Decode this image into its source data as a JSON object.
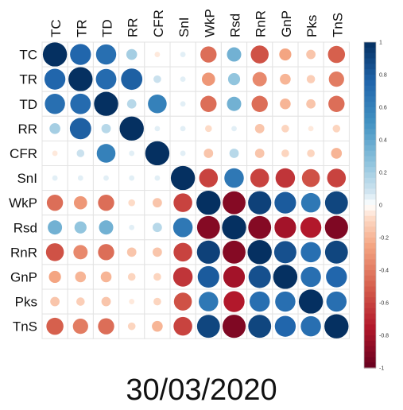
{
  "chart_data": {
    "type": "heatmap",
    "variables": [
      "TC",
      "TR",
      "TD",
      "RR",
      "CFR",
      "SnI",
      "WkP",
      "Rsd",
      "RnR",
      "GnP",
      "Pks",
      "TnS"
    ],
    "matrix": [
      [
        1.0,
        0.75,
        0.7,
        0.2,
        -0.05,
        0.05,
        -0.45,
        0.35,
        -0.55,
        -0.25,
        -0.15,
        -0.5
      ],
      [
        0.75,
        1.0,
        0.72,
        0.78,
        0.1,
        0.05,
        -0.3,
        0.25,
        -0.35,
        -0.2,
        -0.12,
        -0.4
      ],
      [
        0.7,
        0.72,
        1.0,
        0.15,
        0.6,
        0.05,
        -0.45,
        0.35,
        -0.45,
        -0.2,
        -0.15,
        -0.45
      ],
      [
        0.2,
        0.78,
        0.15,
        1.0,
        0.05,
        0.05,
        -0.08,
        0.05,
        -0.15,
        -0.1,
        -0.05,
        -0.1
      ],
      [
        -0.05,
        0.1,
        0.6,
        0.05,
        1.0,
        0.05,
        -0.15,
        0.15,
        -0.15,
        -0.1,
        -0.1,
        -0.2
      ],
      [
        0.05,
        0.05,
        0.05,
        0.05,
        0.05,
        1.0,
        -0.6,
        0.65,
        -0.6,
        -0.65,
        -0.55,
        -0.6
      ],
      [
        -0.45,
        -0.3,
        -0.45,
        -0.08,
        -0.15,
        -0.6,
        1.0,
        -0.9,
        0.92,
        0.8,
        0.65,
        0.9
      ],
      [
        0.35,
        0.25,
        0.35,
        0.05,
        0.15,
        0.65,
        -0.9,
        1.0,
        -0.9,
        -0.8,
        -0.75,
        -0.92
      ],
      [
        -0.55,
        -0.35,
        -0.45,
        -0.15,
        -0.15,
        -0.6,
        0.92,
        -0.9,
        1.0,
        0.85,
        0.7,
        0.9
      ],
      [
        -0.25,
        -0.2,
        -0.2,
        -0.1,
        -0.1,
        -0.65,
        0.8,
        -0.8,
        0.85,
        1.0,
        0.7,
        0.75
      ],
      [
        -0.15,
        -0.12,
        -0.15,
        -0.05,
        -0.1,
        -0.55,
        0.65,
        -0.75,
        0.7,
        0.7,
        1.0,
        0.7
      ],
      [
        -0.5,
        -0.4,
        -0.45,
        -0.1,
        -0.2,
        -0.6,
        0.9,
        -0.92,
        0.9,
        0.75,
        0.7,
        1.0
      ]
    ],
    "colorbar": {
      "range": [
        -1,
        1
      ],
      "ticks": [
        "1",
        "0.8",
        "0.6",
        "0.4",
        "0.2",
        "0",
        "-0.2",
        "-0.4",
        "-0.6",
        "-0.8",
        "-1"
      ],
      "colors": {
        "neg_end": "#67001f",
        "mid": "#ffffff",
        "pos_end": "#053061"
      }
    },
    "grid": true
  },
  "caption": "30/03/2020"
}
